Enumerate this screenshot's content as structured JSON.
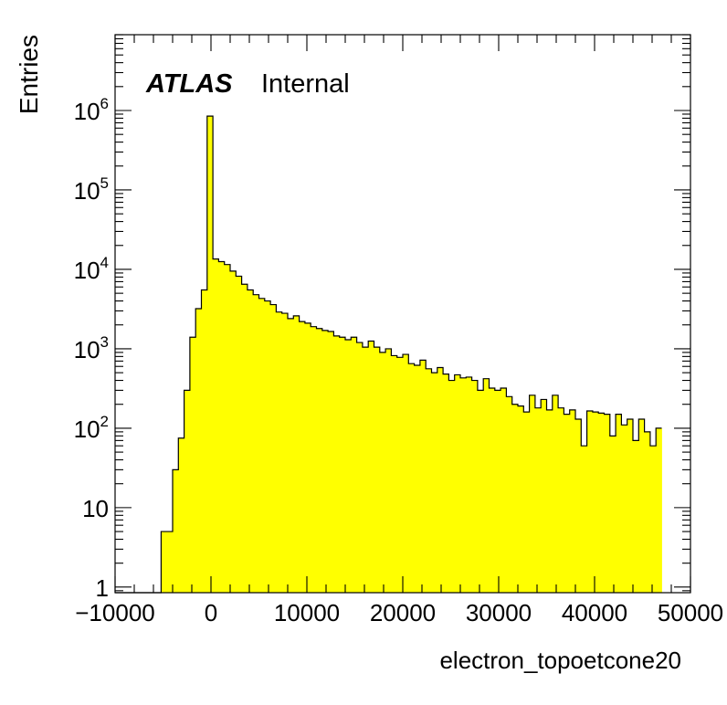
{
  "chart_data": {
    "type": "bar",
    "title": "",
    "xlabel": "electron_topoetcone20",
    "ylabel": "Entries",
    "label_bold": "ATLAS",
    "label_normal": "Internal",
    "xlim": [
      -10000,
      50000
    ],
    "ylim": [
      0.85,
      9000000
    ],
    "log_y": true,
    "grid": false,
    "fill_color": "#ffff00",
    "line_color": "#000000",
    "x_ticks": [
      -10000,
      0,
      10000,
      20000,
      30000,
      40000,
      50000
    ],
    "x_tick_labels": [
      "−10000",
      "0",
      "10000",
      "20000",
      "30000",
      "40000",
      "50000"
    ],
    "y_ticks": [
      {
        "value": 1,
        "base": "1",
        "exp": ""
      },
      {
        "value": 10,
        "base": "10",
        "exp": ""
      },
      {
        "value": 100,
        "base": "10",
        "exp": "2"
      },
      {
        "value": 1000,
        "base": "10",
        "exp": "3"
      },
      {
        "value": 10000,
        "base": "10",
        "exp": "4"
      },
      {
        "value": 100000,
        "base": "10",
        "exp": "5"
      },
      {
        "value": 1000000,
        "base": "10",
        "exp": "6"
      }
    ],
    "bin_edges_start": -10000,
    "bin_width": 600,
    "values": [
      0.85,
      0.85,
      0.85,
      0.85,
      0.85,
      0.85,
      0.85,
      0.85,
      5,
      5,
      30,
      75,
      300,
      1400,
      3200,
      5500,
      850000,
      13500,
      12500,
      11500,
      9500,
      8200,
      6500,
      5500,
      4800,
      4300,
      4000,
      3600,
      2900,
      2800,
      2400,
      2600,
      2200,
      2100,
      1900,
      1800,
      1700,
      1650,
      1450,
      1400,
      1300,
      1400,
      1200,
      1050,
      1250,
      1050,
      900,
      1000,
      820,
      780,
      850,
      650,
      620,
      720,
      560,
      500,
      580,
      480,
      400,
      470,
      430,
      440,
      400,
      300,
      420,
      320,
      300,
      320,
      250,
      200,
      190,
      160,
      260,
      180,
      230,
      170,
      260,
      180,
      150,
      170,
      130,
      60,
      165,
      160,
      155,
      150,
      80,
      150,
      110,
      130,
      70,
      130,
      90,
      60,
      100
    ]
  }
}
